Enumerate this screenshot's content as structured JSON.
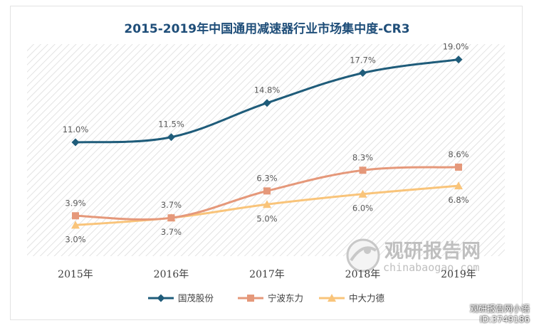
{
  "chart_data": {
    "type": "line",
    "title": "2015-2019年中国通用减速器行业市场集中度-CR3",
    "categories": [
      "2015年",
      "2016年",
      "2017年",
      "2018年",
      "2019年"
    ],
    "series": [
      {
        "name": "国茂股份",
        "values": [
          11.0,
          11.5,
          14.8,
          17.7,
          19.0
        ],
        "labels": [
          "11.0%",
          "11.5%",
          "14.8%",
          "17.7%",
          "19.0%"
        ],
        "color": "#1f5c7a",
        "marker": "diamond"
      },
      {
        "name": "宁波东力",
        "values": [
          3.9,
          3.7,
          6.3,
          8.3,
          8.6
        ],
        "labels": [
          "3.9%",
          "3.7%",
          "6.3%",
          "8.3%",
          "8.6%"
        ],
        "color": "#e5987a",
        "marker": "square"
      },
      {
        "name": "中大力德",
        "values": [
          3.0,
          3.7,
          5.0,
          6.0,
          6.8
        ],
        "labels": [
          "3.0%",
          "3.7%",
          "5.0%",
          "6.0%",
          "6.8%"
        ],
        "color": "#f9c47a",
        "marker": "triangle"
      }
    ],
    "ylim": [
      0,
      22
    ],
    "grid": false,
    "legend_position": "bottom"
  },
  "watermark": {
    "brand": "观研报告网",
    "url": "chinabaogao.com"
  },
  "corner_tag": {
    "line1": "观研报告网小语",
    "line2": "ID:3749186"
  }
}
